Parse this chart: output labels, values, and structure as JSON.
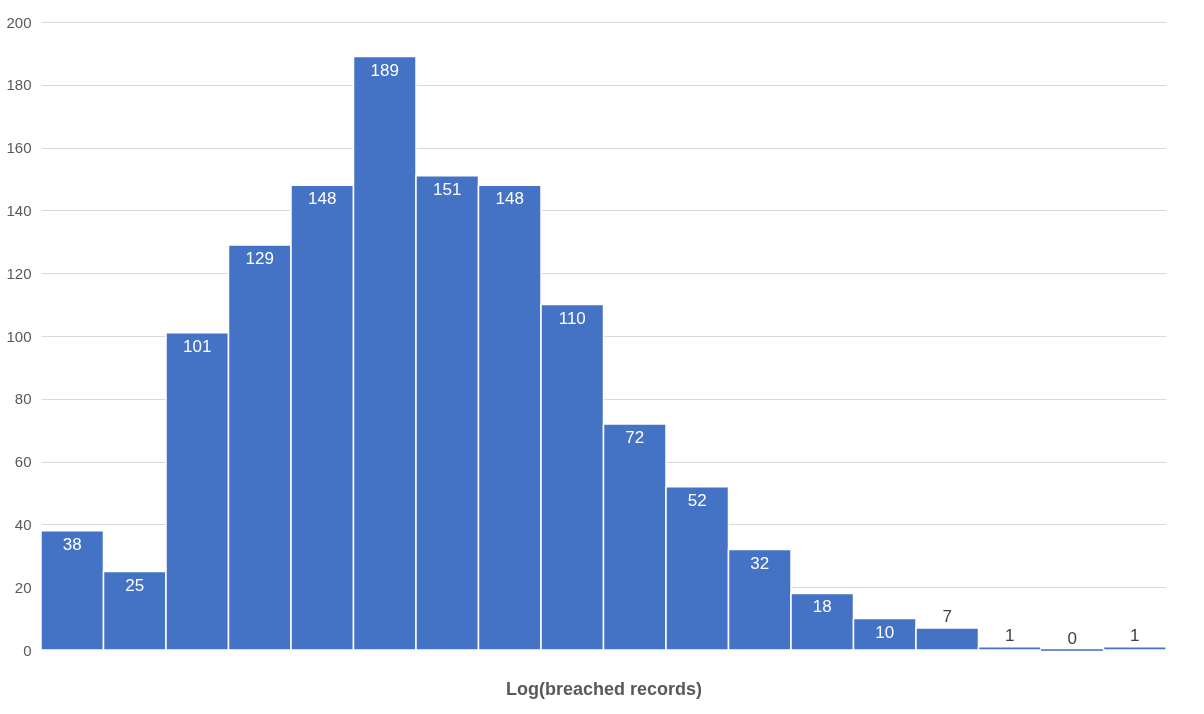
{
  "chart_data": {
    "type": "bar",
    "xlabel": "Log(breached records)",
    "categories": [
      null,
      null,
      null,
      null,
      null,
      null,
      null,
      null,
      null,
      null,
      null,
      null,
      null,
      null,
      null,
      null,
      null,
      null
    ],
    "values": [
      38,
      25,
      101,
      129,
      148,
      189,
      151,
      148,
      110,
      72,
      52,
      32,
      18,
      10,
      7,
      1,
      0,
      1
    ],
    "color": "#4472c4",
    "ylim": [
      0,
      200
    ],
    "yticks": [
      0,
      20,
      40,
      60,
      80,
      100,
      120,
      140,
      160,
      180,
      200
    ],
    "grid": "y",
    "data_labels": true
  }
}
